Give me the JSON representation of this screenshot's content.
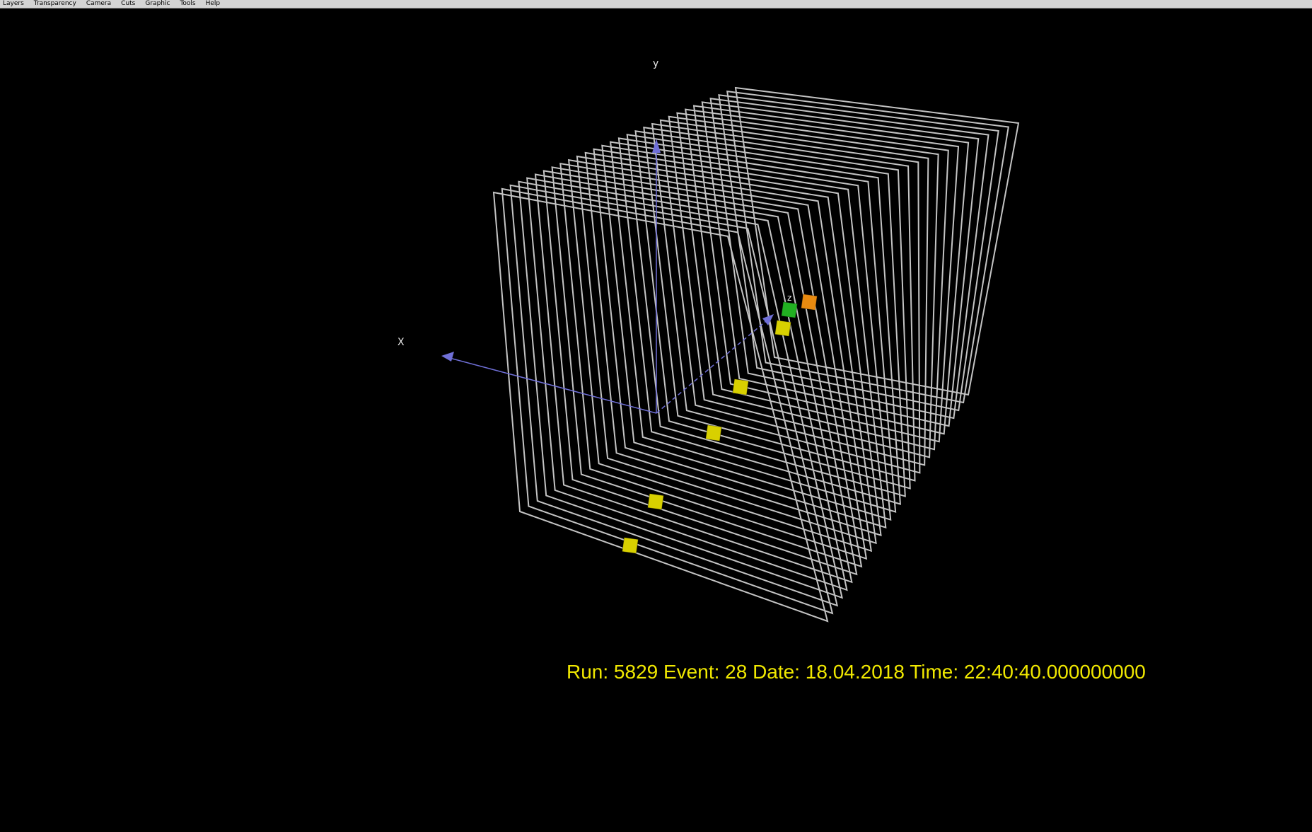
{
  "menu": {
    "items": [
      {
        "id": "layers",
        "label": "Layers"
      },
      {
        "id": "transparency",
        "label": "Transparency"
      },
      {
        "id": "camera",
        "label": "Camera"
      },
      {
        "id": "cuts",
        "label": "Cuts"
      },
      {
        "id": "graphic",
        "label": "Graphic"
      },
      {
        "id": "tools",
        "label": "Tools"
      },
      {
        "id": "help",
        "label": "Help"
      }
    ]
  },
  "axes": {
    "x_label": "X",
    "y_label": "y",
    "z_label": "z",
    "color": "#7070d8"
  },
  "detector": {
    "frame_count": 30,
    "frame_color": "#c4c4c4"
  },
  "hits": [
    {
      "color": "#d8d000"
    },
    {
      "color": "#d8d000"
    },
    {
      "color": "#d8d000"
    },
    {
      "color": "#d8d000"
    },
    {
      "color": "#d8d000"
    },
    {
      "color": "#22b022"
    },
    {
      "color": "#e88a10"
    }
  ],
  "event_info": {
    "text": "Run: 5829 Event: 28 Date: 18.04.2018 Time: 22:40:40.000000000",
    "color": "#f0e800"
  }
}
